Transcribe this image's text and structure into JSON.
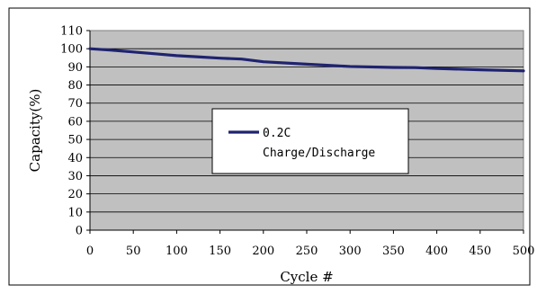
{
  "chart_data": {
    "type": "line",
    "title": "",
    "xlabel": "Cycle #",
    "ylabel": "Capacity(%)",
    "xlim": [
      0,
      500
    ],
    "ylim": [
      0,
      110
    ],
    "xticks": [
      0,
      50,
      100,
      150,
      200,
      250,
      300,
      350,
      400,
      450,
      500
    ],
    "yticks": [
      0,
      10,
      20,
      30,
      40,
      50,
      60,
      70,
      80,
      90,
      100,
      110
    ],
    "grid": "horizontal",
    "legend_placement": "center",
    "series": [
      {
        "name": "0.2C Charge/Discharge",
        "legend_lines": [
          "0.2C",
          "Charge/Discharge"
        ],
        "color": "#1f2370",
        "x": [
          0,
          25,
          50,
          75,
          100,
          125,
          150,
          175,
          200,
          250,
          300,
          350,
          375,
          400,
          450,
          500
        ],
        "y": [
          100,
          99.2,
          98.2,
          97.2,
          96.2,
          95.5,
          94.8,
          94.3,
          92.8,
          91.5,
          90.2,
          89.7,
          89.6,
          89.1,
          88.4,
          87.8
        ]
      }
    ]
  }
}
